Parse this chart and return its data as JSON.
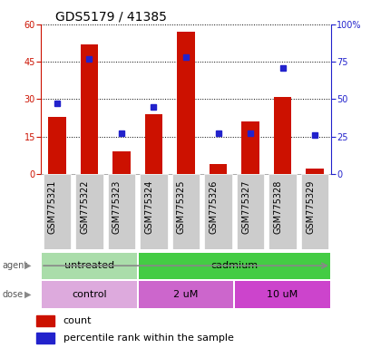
{
  "title": "GDS5179 / 41385",
  "samples": [
    "GSM775321",
    "GSM775322",
    "GSM775323",
    "GSM775324",
    "GSM775325",
    "GSM775326",
    "GSM775327",
    "GSM775328",
    "GSM775329"
  ],
  "counts": [
    23,
    52,
    9,
    24,
    57,
    4,
    21,
    31,
    2
  ],
  "percentiles": [
    47,
    77,
    27,
    45,
    78,
    27,
    27,
    71,
    26
  ],
  "left_ylim": [
    0,
    60
  ],
  "left_yticks": [
    0,
    15,
    30,
    45,
    60
  ],
  "right_ylim": [
    0,
    100
  ],
  "right_yticks": [
    0,
    25,
    50,
    75,
    100
  ],
  "right_yticklabels": [
    "0",
    "25",
    "50",
    "75",
    "100%"
  ],
  "bar_color": "#cc1100",
  "dot_color": "#2222cc",
  "agent_labels": [
    {
      "text": "untreated",
      "start": 0,
      "end": 3,
      "color": "#aaddaa"
    },
    {
      "text": "cadmium",
      "start": 3,
      "end": 9,
      "color": "#44cc44"
    }
  ],
  "dose_labels": [
    {
      "text": "control",
      "start": 0,
      "end": 3,
      "color": "#ddaadd"
    },
    {
      "text": "2 uM",
      "start": 3,
      "end": 6,
      "color": "#cc66cc"
    },
    {
      "text": "10 uM",
      "start": 6,
      "end": 9,
      "color": "#cc44cc"
    }
  ],
  "left_axis_color": "#cc1100",
  "right_axis_color": "#2222cc",
  "tick_fontsize": 7,
  "label_fontsize": 8,
  "title_fontsize": 10,
  "legend_fontsize": 8,
  "sample_bg_color": "#cccccc",
  "sample_border_color": "#ffffff"
}
